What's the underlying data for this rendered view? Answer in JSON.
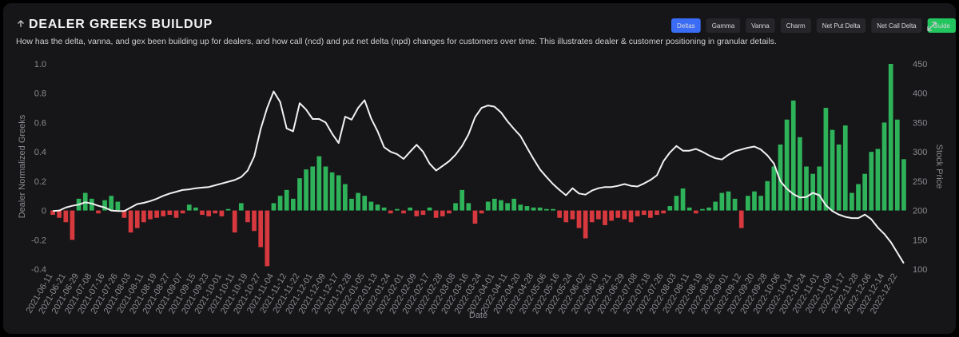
{
  "header": {
    "title": "DEALER GREEKS BUILDUP",
    "description": "How has the delta, vanna, and gex been building up for dealers, and how call (ncd) and put net delta (npd) changes for customers over time. This illustrates dealer & customer positioning in granular details."
  },
  "tabs": [
    "Deltas",
    "Gamma",
    "Vanna",
    "Charm",
    "Net Put Delta",
    "Net Call Delta"
  ],
  "active_tab": 0,
  "guide": "Guide",
  "chart_data": {
    "type": "bar_line",
    "xlabel": "Date",
    "ylabel": "Dealer Normalized Greeks",
    "y2label": "Stock Price",
    "categories": [
      "2021-06-11",
      null,
      "2021-06-21",
      null,
      "2021-06-29",
      null,
      "2021-07-08",
      null,
      "2021-07-16",
      null,
      "2021-07-26",
      null,
      "2021-08-03",
      null,
      "2021-08-11",
      null,
      "2021-08-19",
      null,
      "2021-08-27",
      null,
      "2021-09-07",
      null,
      "2021-09-15",
      null,
      "2021-09-23",
      null,
      "2021-10-01",
      null,
      "2021-10-11",
      null,
      "2021-10-19",
      null,
      "2021-10-27",
      null,
      "2021-11-04",
      null,
      "2021-11-12",
      null,
      "2021-11-22",
      null,
      "2021-12-01",
      null,
      "2021-12-09",
      null,
      "2021-12-17",
      null,
      "2021-12-28",
      null,
      "2022-01-05",
      null,
      "2022-01-13",
      null,
      "2022-01-24",
      null,
      "2022-02-01",
      null,
      "2022-02-09",
      null,
      "2022-02-17",
      null,
      "2022-02-28",
      null,
      "2022-03-08",
      null,
      "2022-03-16",
      null,
      "2022-03-24",
      null,
      "2022-04-01",
      null,
      "2022-04-11",
      null,
      "2022-04-20",
      null,
      "2022-04-28",
      null,
      "2022-05-06",
      null,
      "2022-05-16",
      null,
      "2022-05-24",
      null,
      "2022-06-02",
      null,
      "2022-06-10",
      null,
      "2022-06-21",
      null,
      "2022-06-29",
      null,
      "2022-07-08",
      null,
      "2022-07-18",
      null,
      "2022-07-26",
      null,
      "2022-08-03",
      null,
      "2022-08-11",
      null,
      "2022-08-19",
      null,
      "2022-08-26",
      null,
      "2022-09-01",
      null,
      "2022-09-12",
      null,
      "2022-09-20",
      null,
      "2022-09-28",
      null,
      "2022-10-06",
      null,
      "2022-10-14",
      null,
      "2022-10-24",
      null,
      "2022-11-01",
      null,
      "2022-11-09",
      null,
      "2022-11-17",
      null,
      "2022-11-28",
      null,
      "2022-12-06",
      null,
      "2022-12-14",
      null,
      "2022-12-22",
      null
    ],
    "bars": {
      "positive_color": "#2fb35a",
      "negative_color": "#d7393f",
      "values": [
        -0.03,
        -0.05,
        -0.08,
        -0.2,
        0.08,
        0.12,
        0.08,
        -0.02,
        0.07,
        0.1,
        0.06,
        -0.05,
        -0.15,
        -0.12,
        -0.08,
        -0.06,
        -0.05,
        -0.04,
        -0.03,
        -0.05,
        -0.02,
        0.04,
        0.02,
        -0.03,
        -0.04,
        -0.02,
        -0.04,
        0.01,
        -0.15,
        0.05,
        -0.08,
        -0.14,
        -0.25,
        -0.38,
        0.05,
        0.1,
        0.14,
        0.08,
        0.22,
        0.28,
        0.3,
        0.37,
        0.3,
        0.26,
        0.24,
        0.18,
        0.08,
        0.12,
        0.1,
        0.06,
        0.04,
        0.02,
        -0.02,
        0.01,
        -0.02,
        0.02,
        -0.04,
        -0.03,
        0.02,
        -0.05,
        -0.04,
        -0.02,
        0.05,
        0.14,
        0.05,
        -0.09,
        -0.02,
        0.06,
        0.08,
        0.07,
        0.05,
        0.08,
        0.04,
        0.03,
        0.02,
        0.02,
        0.01,
        0.01,
        -0.05,
        -0.08,
        -0.06,
        -0.12,
        -0.19,
        -0.08,
        -0.06,
        -0.1,
        -0.07,
        -0.05,
        -0.06,
        -0.08,
        -0.04,
        -0.03,
        -0.05,
        -0.03,
        -0.02,
        0.03,
        0.1,
        0.15,
        0.02,
        -0.02,
        0.01,
        0.02,
        0.06,
        0.12,
        0.13,
        0.08,
        -0.12,
        0.1,
        0.13,
        0.1,
        0.2,
        0.3,
        0.45,
        0.62,
        0.75,
        0.5,
        0.3,
        0.25,
        0.3,
        0.7,
        0.55,
        0.45,
        0.58,
        0.12,
        0.18,
        0.25,
        0.4,
        0.42,
        0.6,
        1.0,
        0.62,
        0.35
      ]
    },
    "line": {
      "axis": "y2",
      "color": "#f2f2f2",
      "values": [
        199,
        200,
        205,
        208,
        210,
        214,
        212,
        208,
        205,
        200,
        199,
        199,
        205,
        211,
        213,
        216,
        220,
        225,
        229,
        232,
        235,
        236,
        238,
        239,
        240,
        243,
        246,
        249,
        252,
        257,
        268,
        292,
        339,
        375,
        403,
        385,
        340,
        335,
        383,
        372,
        356,
        356,
        350,
        331,
        315,
        360,
        355,
        375,
        388,
        357,
        335,
        308,
        300,
        296,
        288,
        300,
        312,
        300,
        280,
        268,
        276,
        284,
        295,
        310,
        330,
        359,
        375,
        379,
        377,
        367,
        352,
        339,
        327,
        307,
        288,
        270,
        257,
        245,
        235,
        226,
        238,
        229,
        227,
        234,
        238,
        240,
        240,
        242,
        245,
        242,
        241,
        246,
        252,
        260,
        284,
        299,
        310,
        302,
        302,
        305,
        300,
        294,
        289,
        287,
        295,
        301,
        304,
        307,
        309,
        304,
        294,
        280,
        250,
        237,
        228,
        222,
        223,
        230,
        226,
        209,
        199,
        193,
        189,
        187,
        187,
        193,
        185,
        171,
        160,
        146,
        128,
        110
      ]
    },
    "ylim": [
      -0.4,
      1.0
    ],
    "yticks": [
      -0.4,
      -0.2,
      0,
      0.2,
      0.4,
      0.6,
      0.8,
      {
        "value": 1,
        "label": "1.0"
      }
    ],
    "y2lim": [
      100,
      450
    ],
    "y2ticks": [
      100,
      150,
      200,
      250,
      300,
      350,
      400,
      450
    ]
  }
}
